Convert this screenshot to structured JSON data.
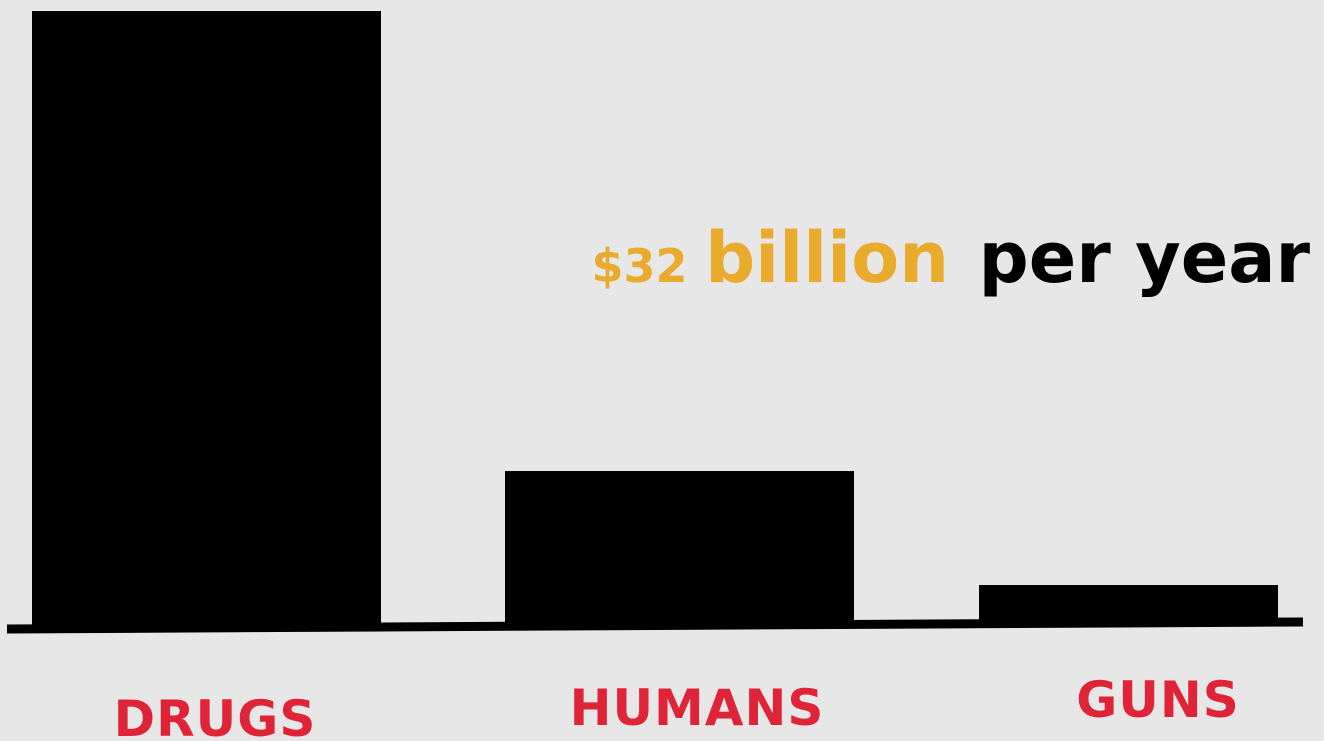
{
  "chart_data": {
    "type": "bar",
    "categories": [
      "DRUGS",
      "HUMANS",
      "GUNS"
    ],
    "values": [
      100,
      25,
      6
    ],
    "ylim": [
      0,
      100
    ],
    "grid": false,
    "annotation": {
      "amount": "$32",
      "unit": "billion",
      "suffix": "per year",
      "refers_to": "HUMANS"
    }
  },
  "colors": {
    "background": "#e7e7e7",
    "bar": "#000000",
    "baseline": "#000000",
    "category_label": "#de2436",
    "annotation_highlight": "#e9ab2d",
    "annotation_text": "#000000"
  }
}
